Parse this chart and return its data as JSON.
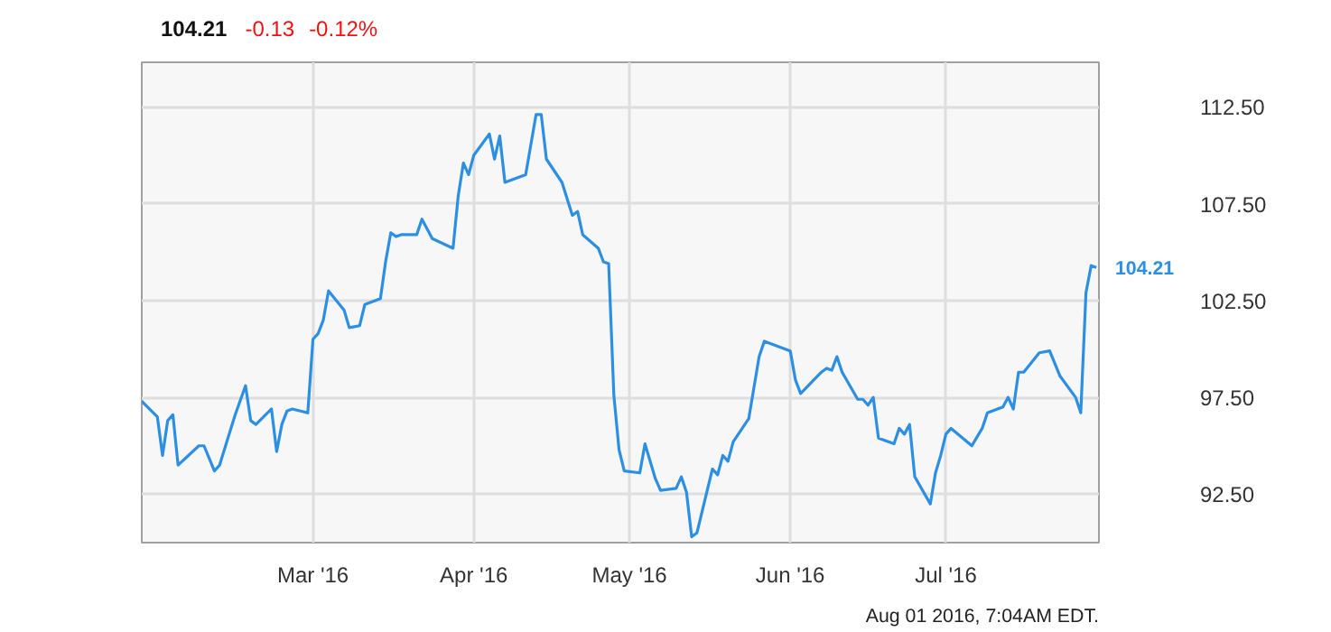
{
  "chart_data": {
    "type": "line",
    "title": "104.21",
    "annotations": [
      "-0.13",
      "-0.12%",
      {
        "text": "104.21",
        "x": "2016-07-30",
        "y": 104.21
      },
      "Aug 01 2016, 7:04AM EDT."
    ],
    "x": [
      "2016-01-28",
      "2016-01-31",
      "2016-02-01",
      "2016-02-02",
      "2016-02-03",
      "2016-02-04",
      "2016-02-08",
      "2016-02-09",
      "2016-02-11",
      "2016-02-12",
      "2016-02-15",
      "2016-02-17",
      "2016-02-18",
      "2016-02-19",
      "2016-02-22",
      "2016-02-23",
      "2016-02-24",
      "2016-02-25",
      "2016-02-26",
      "2016-02-29",
      "2016-03-01",
      "2016-03-02",
      "2016-03-03",
      "2016-03-04",
      "2016-03-07",
      "2016-03-08",
      "2016-03-10",
      "2016-03-11",
      "2016-03-14",
      "2016-03-15",
      "2016-03-16",
      "2016-03-17",
      "2016-03-18",
      "2016-03-21",
      "2016-03-22",
      "2016-03-24",
      "2016-03-28",
      "2016-03-29",
      "2016-03-30",
      "2016-03-31",
      "2016-04-01",
      "2016-04-04",
      "2016-04-05",
      "2016-04-06",
      "2016-04-07",
      "2016-04-11",
      "2016-04-13",
      "2016-04-14",
      "2016-04-15",
      "2016-04-18",
      "2016-04-20",
      "2016-04-21",
      "2016-04-22",
      "2016-04-25",
      "2016-04-26",
      "2016-04-27",
      "2016-04-28",
      "2016-04-29",
      "2016-04-30",
      "2016-05-03",
      "2016-05-04",
      "2016-05-06",
      "2016-05-07",
      "2016-05-10",
      "2016-05-11",
      "2016-05-12",
      "2016-05-13",
      "2016-05-14",
      "2016-05-17",
      "2016-05-18",
      "2016-05-19",
      "2016-05-20",
      "2016-05-21",
      "2016-05-24",
      "2016-05-26",
      "2016-05-27",
      "2016-06-01",
      "2016-06-02",
      "2016-06-03",
      "2016-06-07",
      "2016-06-08",
      "2016-06-09",
      "2016-06-10",
      "2016-06-11",
      "2016-06-14",
      "2016-06-15",
      "2016-06-16",
      "2016-06-17",
      "2016-06-18",
      "2016-06-21",
      "2016-06-22",
      "2016-06-23",
      "2016-06-24",
      "2016-06-25",
      "2016-06-28",
      "2016-06-29",
      "2016-06-30",
      "2016-07-01",
      "2016-07-02",
      "2016-07-06",
      "2016-07-08",
      "2016-07-09",
      "2016-07-12",
      "2016-07-13",
      "2016-07-14",
      "2016-07-15",
      "2016-07-16",
      "2016-07-19",
      "2016-07-21",
      "2016-07-23",
      "2016-07-26",
      "2016-07-27",
      "2016-07-28",
      "2016-07-29",
      "2016-07-30"
    ],
    "series": [
      {
        "color": "#2d8fe3",
        "values": [
          97.3,
          96.5,
          94.5,
          96.3,
          96.6,
          94.0,
          95.0,
          95.0,
          93.7,
          94.0,
          96.6,
          98.1,
          96.3,
          96.1,
          96.9,
          94.7,
          96.1,
          96.8,
          96.9,
          96.7,
          100.5,
          100.8,
          101.5,
          103.0,
          102.0,
          101.1,
          101.2,
          102.3,
          102.6,
          104.5,
          106.0,
          105.8,
          105.9,
          105.9,
          106.7,
          105.7,
          105.2,
          107.9,
          109.6,
          109.0,
          110.0,
          111.1,
          109.8,
          111.0,
          108.6,
          109.0,
          112.1,
          112.1,
          109.8,
          108.6,
          106.9,
          107.1,
          105.9,
          105.2,
          104.5,
          104.4,
          97.6,
          94.8,
          93.7,
          93.6,
          95.1,
          93.3,
          92.7,
          92.8,
          93.4,
          92.6,
          90.3,
          90.5,
          93.8,
          93.5,
          94.5,
          94.2,
          95.2,
          96.4,
          99.6,
          100.4,
          99.9,
          98.4,
          97.7,
          98.8,
          99.0,
          98.9,
          99.6,
          98.8,
          97.4,
          97.4,
          97.1,
          97.5,
          95.4,
          95.1,
          95.9,
          95.6,
          96.1,
          93.4,
          92.0,
          93.6,
          94.5,
          95.6,
          95.9,
          95.0,
          95.9,
          96.7,
          97.0,
          97.5,
          96.9,
          98.8,
          98.8,
          99.8,
          99.9,
          98.6,
          97.5,
          96.7,
          102.9,
          104.3,
          104.21
        ]
      }
    ],
    "xlim": [
      "2016-01-28",
      "2016-07-30T12:00"
    ],
    "xticks": [
      {
        "value": "2016-03-01",
        "label": "Mar '16"
      },
      {
        "value": "2016-04-01",
        "label": "Apr '16"
      },
      {
        "value": "2016-05-01",
        "label": "May '16"
      },
      {
        "value": "2016-06-01",
        "label": "Jun '16"
      },
      {
        "value": "2016-07-01",
        "label": "Jul '16"
      }
    ],
    "ylim": [
      90.0,
      114.8
    ],
    "yticks": [
      {
        "value": 92.5,
        "label": "92.50"
      },
      {
        "value": 97.5,
        "label": "97.50"
      },
      {
        "value": 102.5,
        "label": "102.50"
      },
      {
        "value": 107.5,
        "label": "107.50"
      },
      {
        "value": 112.5,
        "label": "112.50"
      }
    ],
    "grid": true,
    "marker": "none",
    "line_style": "solid"
  }
}
